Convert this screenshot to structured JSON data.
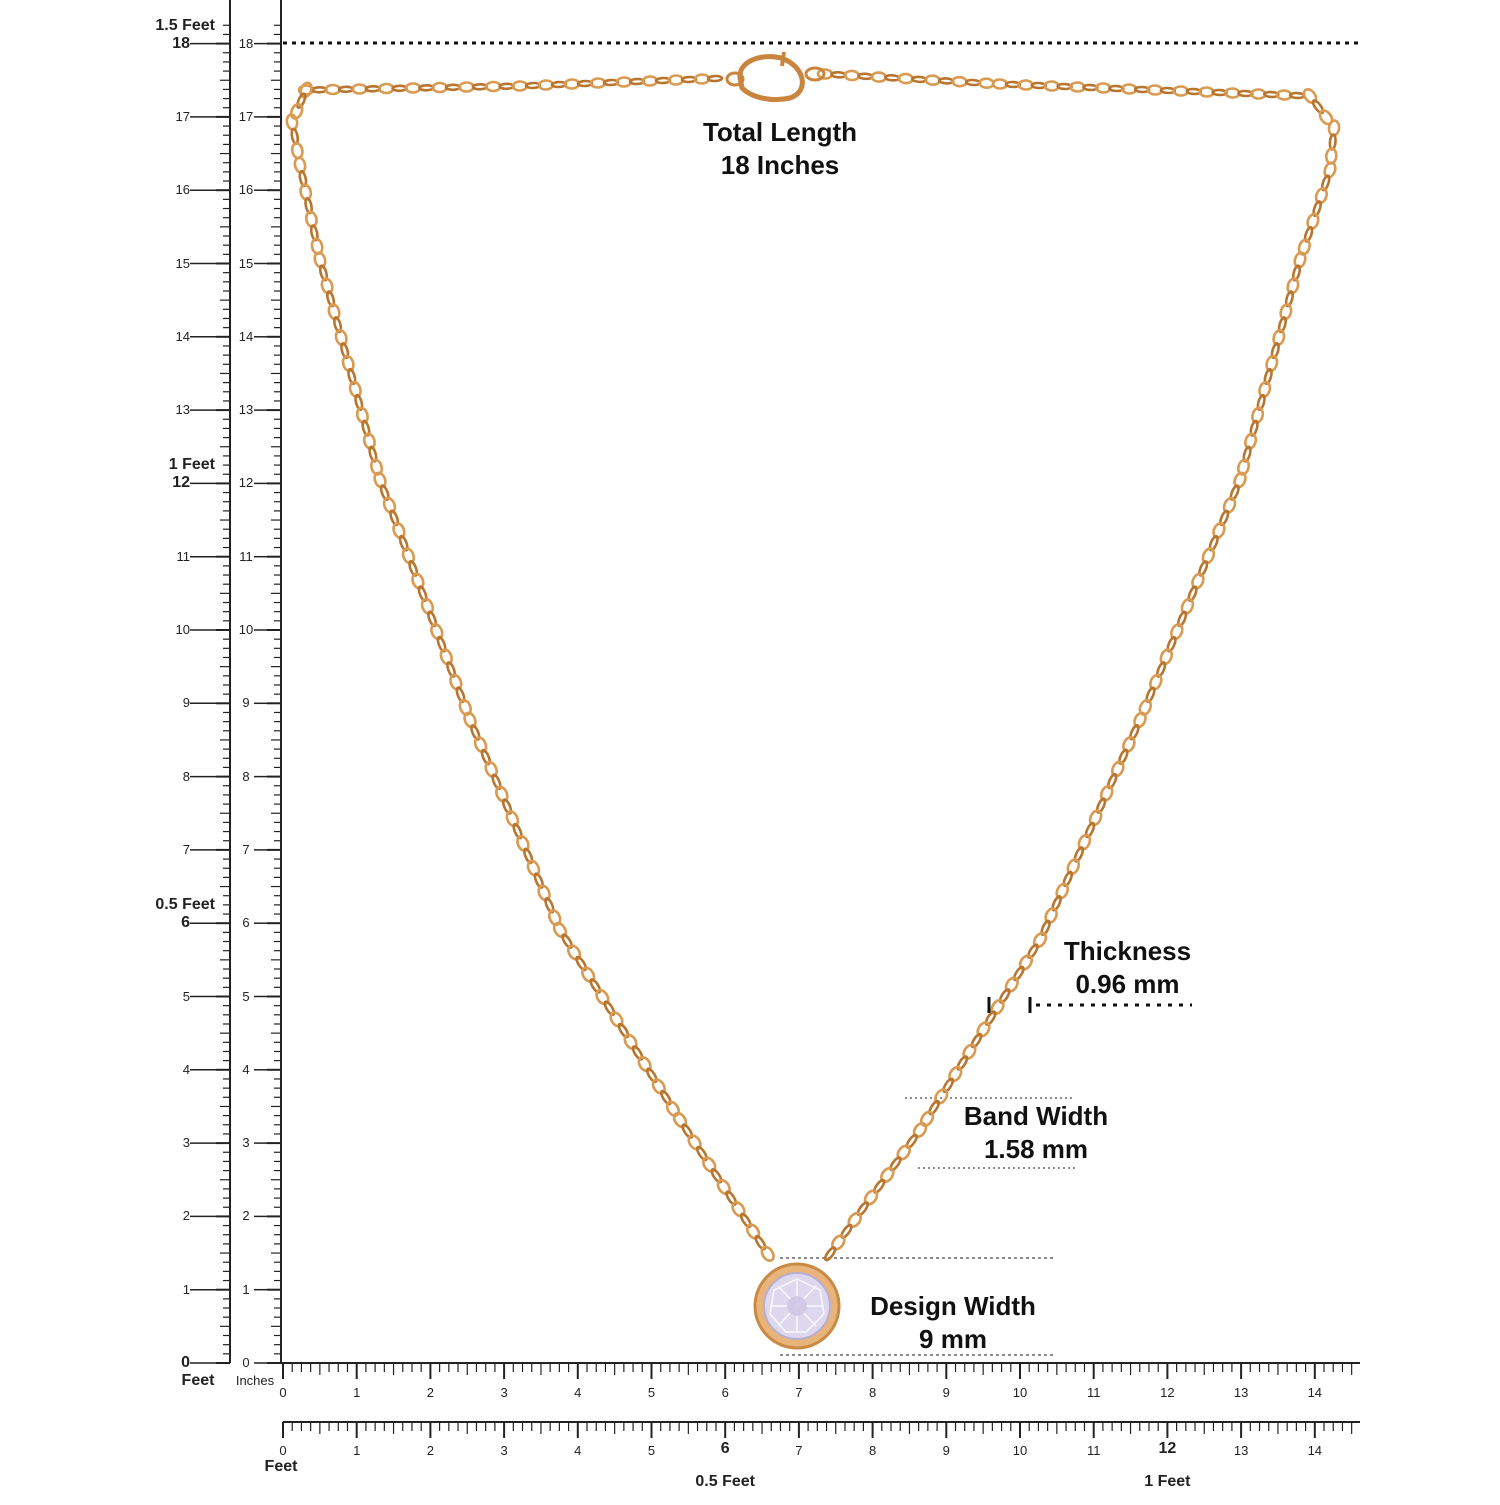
{
  "rulers": {
    "left_outer": {
      "unit_caption": "Feet",
      "tick_labels": [
        "0",
        "1",
        "2",
        "3",
        "4",
        "5",
        "6",
        "7",
        "8",
        "9",
        "10",
        "11",
        "12",
        "13",
        "14",
        "15",
        "16",
        "17",
        "18"
      ],
      "feet_markers": [
        {
          "label": "0.5 Feet",
          "at_inch": 6
        },
        {
          "label": "1 Feet",
          "at_inch": 12
        },
        {
          "label": "1.5 Feet",
          "at_inch": 18
        }
      ]
    },
    "left_inner": {
      "unit_caption": "Inches",
      "tick_labels": [
        "0",
        "1",
        "2",
        "3",
        "4",
        "5",
        "6",
        "7",
        "8",
        "9",
        "10",
        "11",
        "12",
        "13",
        "14",
        "15",
        "16",
        "17",
        "18"
      ]
    },
    "bottom_inches": {
      "tick_labels": [
        "0",
        "1",
        "2",
        "3",
        "4",
        "5",
        "6",
        "7",
        "8",
        "9",
        "10",
        "11",
        "12",
        "13",
        "14"
      ]
    },
    "bottom_feet": {
      "unit_caption": "Feet",
      "tick_labels": [
        "0",
        "1",
        "2",
        "3",
        "4",
        "5",
        "6",
        "7",
        "8",
        "9",
        "10",
        "11",
        "12",
        "13",
        "14"
      ],
      "feet_markers": [
        {
          "label": "0.5 Feet",
          "at_inch": 6
        },
        {
          "label": "1 Feet",
          "at_inch": 12
        }
      ]
    }
  },
  "annotations": {
    "total_length": {
      "title": "Total Length",
      "value": "18 Inches"
    },
    "thickness": {
      "title": "Thickness",
      "value": "0.96 mm"
    },
    "band_width": {
      "title": "Band Width",
      "value": "1.58 mm"
    },
    "design_width": {
      "title": "Design Width",
      "value": "9 mm"
    }
  },
  "colors": {
    "chain": "#d99a52",
    "chain_dark": "#b8752f",
    "bezel": "#e2a868",
    "stone": "#dcd6ee",
    "ruler": "#222222",
    "guide": "#666666"
  }
}
